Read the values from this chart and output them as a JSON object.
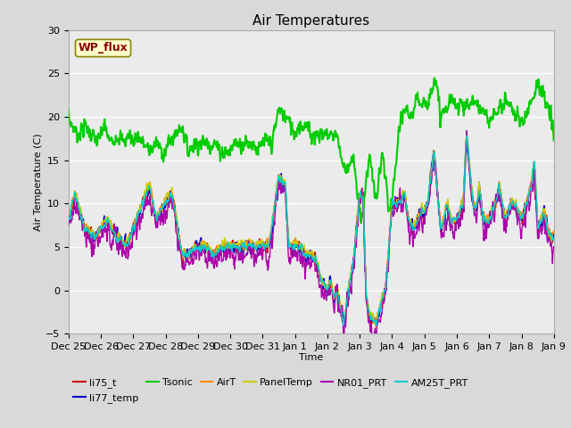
{
  "title": "Air Temperatures",
  "xlabel": "Time",
  "ylabel": "Air Temperature (C)",
  "ylim": [
    -5,
    30
  ],
  "yticks": [
    -5,
    0,
    5,
    10,
    15,
    20,
    25,
    30
  ],
  "xtick_labels": [
    "Dec 25",
    "Dec 26",
    "Dec 27",
    "Dec 28",
    "Dec 29",
    "Dec 30",
    "Dec 31",
    "Jan 1",
    "Jan 2",
    "Jan 3",
    "Jan 4",
    "Jan 5",
    "Jan 6",
    "Jan 7",
    "Jan 8",
    "Jan 9"
  ],
  "series_names": [
    "li75_t",
    "li77_temp",
    "Tsonic",
    "AirT",
    "PanelTemp",
    "NR01_PRT",
    "AM25T_PRT"
  ],
  "series_colors": [
    "#cc0000",
    "#0000cc",
    "#00cc00",
    "#ff8800",
    "#cccc00",
    "#aa00aa",
    "#00cccc"
  ],
  "series_linewidths": [
    1.0,
    1.0,
    1.5,
    1.0,
    1.0,
    1.0,
    1.0
  ],
  "wp_flux_box_color": "#ffffcc",
  "wp_flux_text_color": "#8b0000",
  "bg_color": "#d9d9d9",
  "plot_bg_color": "#ebebeb",
  "grid_color": "#ffffff",
  "title_fontsize": 11,
  "label_fontsize": 8,
  "tick_fontsize": 8,
  "legend_fontsize": 8
}
